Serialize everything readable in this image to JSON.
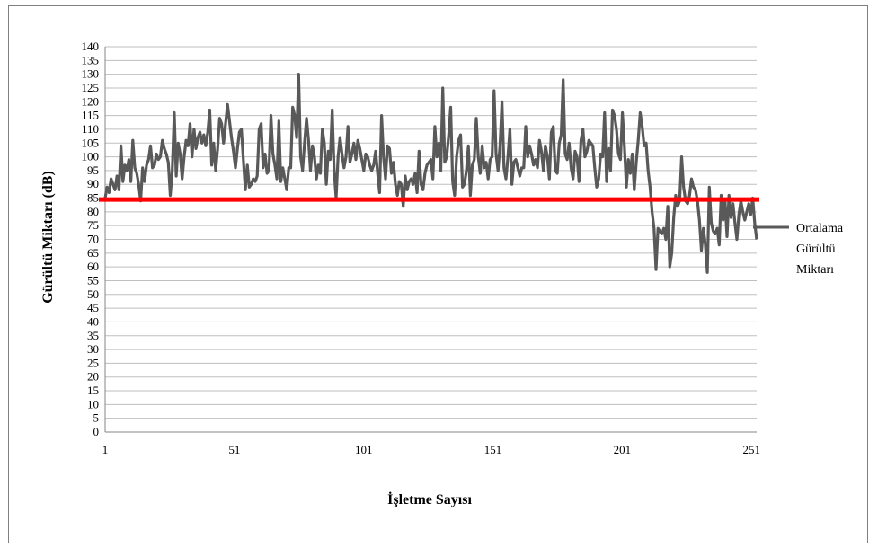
{
  "chart_data": {
    "type": "line",
    "title": "",
    "xlabel": "İşletme Sayısı",
    "ylabel": "Gürültü Miktarı (dB)",
    "ylim": [
      0,
      140
    ],
    "yticks": [
      0,
      5,
      10,
      15,
      20,
      25,
      30,
      35,
      40,
      45,
      50,
      55,
      60,
      65,
      70,
      75,
      80,
      85,
      90,
      95,
      100,
      105,
      110,
      115,
      120,
      125,
      130,
      135,
      140
    ],
    "xlim": [
      1,
      253
    ],
    "xticks": [
      1,
      51,
      101,
      151,
      201,
      251
    ],
    "grid": true,
    "legend_position": "right",
    "colors": {
      "series": "#595959",
      "mean": "#ff0000"
    },
    "series": [
      {
        "values": [
          85,
          89,
          87,
          92,
          90,
          88,
          93,
          88,
          104,
          91,
          97,
          95,
          99,
          91,
          106,
          96,
          94,
          90,
          84,
          96,
          91,
          97,
          99,
          104,
          96,
          97,
          101,
          99,
          100,
          106,
          103,
          101,
          98,
          86,
          95,
          116,
          93,
          105,
          101,
          92,
          100,
          106,
          104,
          112,
          100,
          110,
          103,
          107,
          109,
          105,
          108,
          104,
          109,
          117,
          97,
          105,
          95,
          103,
          114,
          112,
          105,
          112,
          119,
          113,
          107,
          102,
          96,
          103,
          109,
          110,
          99,
          88,
          97,
          89,
          90,
          92,
          91,
          93,
          110,
          112,
          96,
          101,
          94,
          95,
          115,
          101,
          97,
          92,
          113,
          91,
          96,
          92,
          88,
          96,
          96,
          118,
          115,
          107,
          130,
          100,
          95,
          105,
          114,
          106,
          95,
          104,
          100,
          92,
          97,
          94,
          110,
          105,
          90,
          102,
          99,
          117,
          95,
          85,
          100,
          107,
          101,
          96,
          100,
          111,
          98,
          101,
          105,
          99,
          106,
          103,
          99,
          95,
          101,
          100,
          97,
          95,
          97,
          102,
          94,
          87,
          115,
          100,
          92,
          104,
          103,
          94,
          98,
          90,
          86,
          91,
          90,
          82,
          93,
          88,
          91,
          92,
          90,
          94,
          87,
          102,
          90,
          88,
          94,
          97,
          98,
          99,
          92,
          111,
          100,
          105,
          95,
          125,
          98,
          100,
          108,
          118,
          91,
          86,
          100,
          106,
          108,
          89,
          90,
          95,
          104,
          86,
          97,
          99,
          114,
          100,
          94,
          104,
          96,
          98,
          92,
          99,
          100,
          124,
          101,
          95,
          104,
          120,
          96,
          92,
          100,
          110,
          90,
          98,
          99,
          96,
          93,
          96,
          96,
          111,
          100,
          104,
          101,
          97,
          99,
          96,
          106,
          102,
          95,
          104,
          100,
          92,
          109,
          111,
          95,
          94,
          105,
          108,
          128,
          101,
          99,
          105,
          96,
          92,
          102,
          100,
          91,
          106,
          110,
          100,
          102,
          106,
          105,
          104,
          96,
          89,
          92,
          101,
          100,
          116,
          91,
          103,
          95,
          117,
          115,
          110,
          101,
          99,
          116,
          104,
          89,
          99,
          94,
          101,
          88,
          98,
          106,
          116,
          111,
          104,
          105,
          95,
          89,
          80,
          74,
          59,
          74,
          73,
          72,
          74,
          70,
          82,
          60,
          65,
          78,
          86,
          82,
          84,
          100,
          89,
          84,
          83,
          86,
          92,
          89,
          88,
          84,
          77,
          66,
          74,
          68,
          58,
          89,
          76,
          73,
          72,
          74,
          68,
          86,
          77,
          84,
          71,
          86,
          78,
          83,
          76,
          70,
          79,
          84,
          80,
          77,
          80,
          83,
          79,
          85,
          76,
          70
        ]
      }
    ],
    "mean_line": {
      "name": "Ortalama Gürültü Miktarı",
      "value": 84.5
    },
    "legend": {
      "lines": [
        "Ortalama",
        "Gürültü",
        "Miktarı"
      ]
    }
  }
}
